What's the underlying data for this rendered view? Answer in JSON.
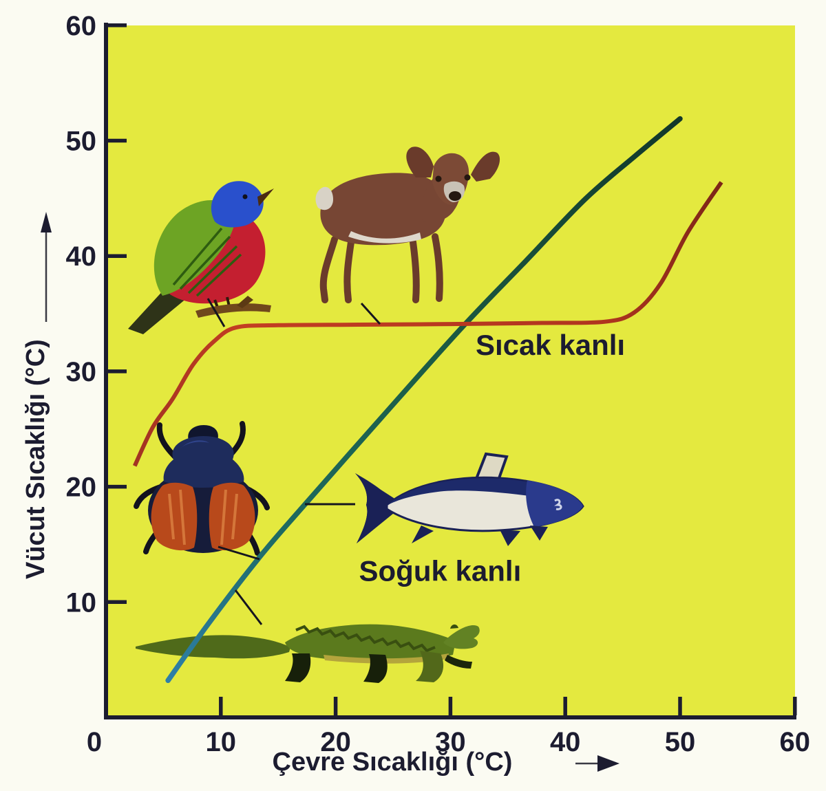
{
  "figure": {
    "background": "#fbfbf2",
    "plot_background": "#e4e93f",
    "axis_color": "#1c1c30",
    "text_color": "#1c1c30"
  },
  "chart_data": {
    "type": "line",
    "title": "",
    "xlabel": "Çevre Sıcaklığı (°C)",
    "ylabel": "Vücut Sıcaklığı (°C)",
    "xlim": [
      0,
      60
    ],
    "ylim": [
      0,
      60
    ],
    "grid": false,
    "legend_position": "none",
    "xticks": [
      0,
      10,
      20,
      30,
      40,
      50,
      60
    ],
    "yticks": [
      10,
      20,
      30,
      40,
      50,
      60
    ],
    "series": [
      {
        "name": "Sıcak kanlı",
        "color": "#b93b20",
        "points": [
          [
            2.5,
            21.8
          ],
          [
            4.1,
            25.2
          ],
          [
            5.8,
            27.6
          ],
          [
            7.6,
            30.6
          ],
          [
            9.4,
            32.6
          ],
          [
            11.3,
            33.8
          ],
          [
            15,
            34
          ],
          [
            22,
            34.05
          ],
          [
            30,
            34.1
          ],
          [
            38,
            34.2
          ],
          [
            43.4,
            34.3
          ],
          [
            46,
            35.1
          ],
          [
            48.3,
            37.6
          ],
          [
            50.7,
            42.1
          ],
          [
            53.6,
            46.4
          ]
        ]
      },
      {
        "name": "Soğuk kanlı",
        "color": "#1d5c44",
        "points": [
          [
            5.4,
            3.2
          ],
          [
            8.9,
            8.1
          ],
          [
            13.3,
            13.8
          ],
          [
            17,
            18.1
          ],
          [
            24,
            26
          ],
          [
            31,
            33.8
          ],
          [
            36.5,
            39.5
          ],
          [
            41.7,
            44.9
          ],
          [
            46,
            48.6
          ],
          [
            50,
            51.9
          ]
        ]
      }
    ],
    "annotations": [
      {
        "text": "Sıcak kanlı",
        "x": 38.7,
        "y": 32.1
      },
      {
        "text": "Soğuk kanlı",
        "x": 29.1,
        "y": 12.5
      }
    ]
  },
  "illustrations": [
    {
      "name": "painted-bunting-bird",
      "linked_curve": "Sıcak kanlı"
    },
    {
      "name": "deer",
      "linked_curve": "Sıcak kanlı"
    },
    {
      "name": "beetle",
      "linked_curve": "Soğuk kanlı"
    },
    {
      "name": "fish",
      "linked_curve": "Soğuk kanlı"
    },
    {
      "name": "crocodile",
      "linked_curve": "Soğuk kanlı"
    }
  ]
}
